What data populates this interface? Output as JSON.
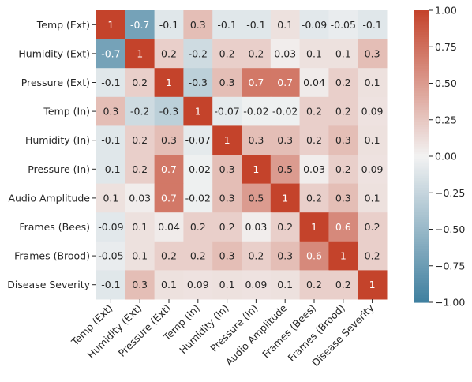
{
  "chart_data": {
    "type": "heatmap",
    "title": "",
    "xlabel": "",
    "ylabel": "",
    "labels": [
      "Temp (Ext)",
      "Humidity (Ext)",
      "Pressure (Ext)",
      "Temp (In)",
      "Humidity (In)",
      "Pressure (In)",
      "Audio Amplitude",
      "Frames (Bees)",
      "Frames (Brood)",
      "Disease Severity"
    ],
    "values": [
      [
        1,
        -0.7,
        -0.1,
        0.3,
        -0.1,
        -0.1,
        0.1,
        -0.09,
        -0.05,
        -0.1
      ],
      [
        -0.7,
        1,
        0.2,
        -0.2,
        0.2,
        0.2,
        0.03,
        0.1,
        0.1,
        0.3
      ],
      [
        -0.1,
        0.2,
        1,
        -0.3,
        0.3,
        0.7,
        0.7,
        0.04,
        0.2,
        0.1
      ],
      [
        0.3,
        -0.2,
        -0.3,
        1,
        -0.07,
        -0.02,
        -0.02,
        0.2,
        0.2,
        0.09
      ],
      [
        -0.1,
        0.2,
        0.3,
        -0.07,
        1,
        0.3,
        0.3,
        0.2,
        0.3,
        0.1
      ],
      [
        -0.1,
        0.2,
        0.7,
        -0.02,
        0.3,
        1,
        0.5,
        0.03,
        0.2,
        0.09
      ],
      [
        0.1,
        0.03,
        0.7,
        -0.02,
        0.3,
        0.5,
        1,
        0.2,
        0.3,
        0.1
      ],
      [
        -0.09,
        0.1,
        0.04,
        0.2,
        0.2,
        0.03,
        0.2,
        1,
        0.6,
        0.2
      ],
      [
        -0.05,
        0.1,
        0.2,
        0.2,
        0.3,
        0.2,
        0.3,
        0.6,
        1,
        0.2
      ],
      [
        -0.1,
        0.3,
        0.1,
        0.09,
        0.1,
        0.09,
        0.1,
        0.2,
        0.2,
        1
      ]
    ],
    "vmin": -1,
    "vmax": 1,
    "colorbar": {
      "ticks": [
        1,
        0.75,
        0.5,
        0.25,
        0,
        -0.25,
        -0.5,
        -0.75,
        -1
      ],
      "tick_labels": [
        "1.00",
        "0.75",
        "0.50",
        "0.25",
        "0.00",
        "−0.25",
        "−0.50",
        "−0.75",
        "−1.00"
      ]
    },
    "colors": {
      "negative": "#3f7f9f",
      "neutral": "#f2f2f2",
      "positive": "#c4432b",
      "text_dark": "#262626",
      "text_light": "#ffffff"
    }
  }
}
